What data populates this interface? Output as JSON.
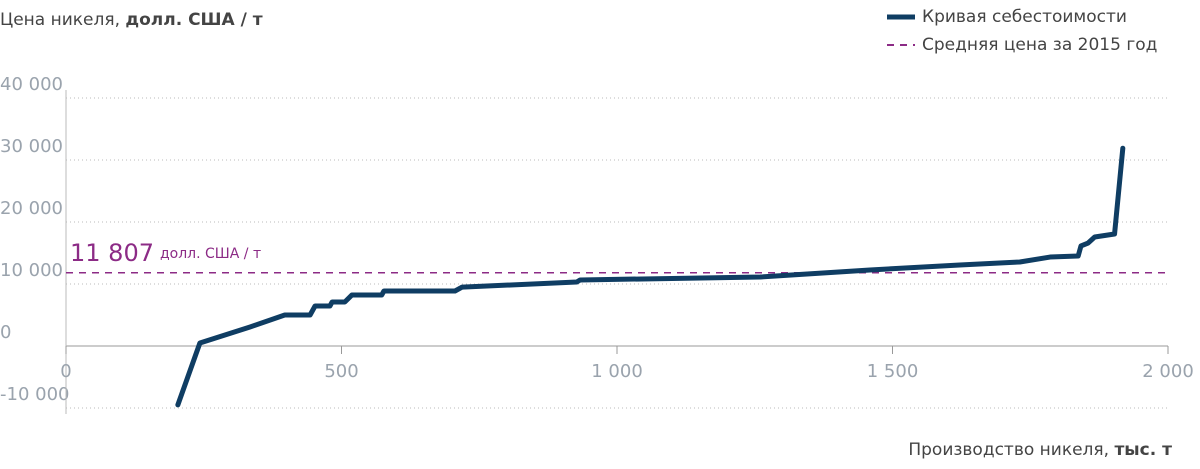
{
  "chart_data": {
    "type": "line",
    "y_label": "Цена никеля,",
    "y_label_unit": "долл. США / т",
    "x_label": "Производство никеля,",
    "x_label_unit": "тыс. т",
    "series": [
      {
        "name": "Кривая себестоимости",
        "color": "#0f3d63",
        "x": [
          203,
          243,
          334,
          397,
          443,
          452,
          479,
          483,
          506,
          519,
          573,
          577,
          706,
          719,
          927,
          933,
          1260,
          1459,
          1622,
          1731,
          1786,
          1837,
          1842,
          1855,
          1867,
          1903,
          1918
        ],
        "values": [
          -9500,
          480,
          3070,
          5000,
          5000,
          6450,
          6450,
          7100,
          7100,
          8230,
          8230,
          8870,
          8870,
          9500,
          10320,
          10650,
          11130,
          12260,
          13060,
          13550,
          14350,
          14520,
          16130,
          16610,
          17580,
          18060,
          31900
        ]
      }
    ],
    "reference_line": {
      "name": "Средняя цена за 2015 год",
      "value": 11807,
      "label": "11 807",
      "unit": "долл. США / т",
      "color": "#8c2b86"
    },
    "xlim": [
      0,
      2000
    ],
    "xticks": [
      0,
      500,
      {
        "value": 1000,
        "label": "1 000"
      },
      {
        "value": 1500,
        "label": "1 500"
      },
      {
        "value": 2000,
        "label": "2 000"
      }
    ],
    "ylim": [
      -10000,
      40000
    ],
    "yticks": [
      {
        "value": -10000,
        "label": "-10 000"
      },
      0,
      {
        "value": 10000,
        "label": "10 000"
      },
      {
        "value": 20000,
        "label": "20 000"
      },
      {
        "value": 30000,
        "label": "30 000"
      },
      {
        "value": 40000,
        "label": "40 000"
      }
    ],
    "grid": true
  }
}
